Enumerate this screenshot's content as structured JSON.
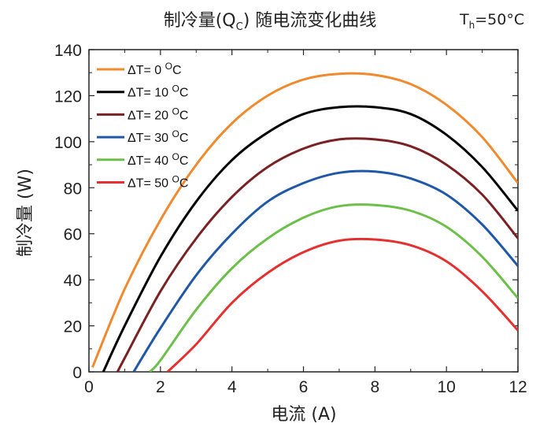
{
  "header": {
    "title_prefix": "制冷量(Q",
    "title_sub": "C",
    "title_suffix": ") 随电流变化曲线",
    "condition_main": "T",
    "condition_sub": "h",
    "condition_value": "=50°C"
  },
  "axes": {
    "ylabel": "制冷量 (W)",
    "xlabel": "电流 (A)"
  },
  "chart_data": {
    "type": "line",
    "title": "制冷量(QC) 随电流变化曲线",
    "xlabel": "电流 (A)",
    "ylabel": "制冷量 (W)",
    "xlim": [
      0,
      12
    ],
    "ylim": [
      0,
      140
    ],
    "xticks": [
      0,
      2,
      4,
      6,
      8,
      10,
      12
    ],
    "yticks": [
      0,
      20,
      40,
      60,
      80,
      100,
      120,
      140
    ],
    "grid": false,
    "legend_position": "top-left",
    "series": [
      {
        "name": "ΔT= 0 °C",
        "legend_text": "ΔT= 0 ",
        "color": "#F08A2E",
        "points": [
          [
            0.1,
            2
          ],
          [
            1,
            36
          ],
          [
            2,
            66
          ],
          [
            3,
            90
          ],
          [
            4,
            108
          ],
          [
            5,
            120
          ],
          [
            6,
            127
          ],
          [
            7,
            129.5
          ],
          [
            8,
            129
          ],
          [
            9,
            125
          ],
          [
            10,
            116
          ],
          [
            11,
            102
          ],
          [
            12,
            82
          ]
        ]
      },
      {
        "name": "ΔT= 10 °C",
        "legend_text": "ΔT= 10 ",
        "color": "#000000",
        "points": [
          [
            0.4,
            0
          ],
          [
            1,
            20
          ],
          [
            2,
            50
          ],
          [
            3,
            74
          ],
          [
            4,
            92
          ],
          [
            5,
            104
          ],
          [
            6,
            112
          ],
          [
            7,
            115
          ],
          [
            8,
            115
          ],
          [
            9,
            112
          ],
          [
            10,
            103
          ],
          [
            11,
            89
          ],
          [
            12,
            70
          ]
        ]
      },
      {
        "name": "ΔT= 20 °C",
        "legend_text": "ΔT= 20 ",
        "color": "#7A2124",
        "points": [
          [
            0.8,
            0
          ],
          [
            1,
            6
          ],
          [
            2,
            35
          ],
          [
            3,
            58
          ],
          [
            4,
            76
          ],
          [
            5,
            89
          ],
          [
            6,
            97
          ],
          [
            7,
            101
          ],
          [
            8,
            101
          ],
          [
            9,
            98
          ],
          [
            10,
            90
          ],
          [
            11,
            77
          ],
          [
            12,
            58
          ]
        ]
      },
      {
        "name": "ΔT= 30 °C",
        "legend_text": "ΔT= 30 ",
        "color": "#2058A8",
        "points": [
          [
            1.25,
            0
          ],
          [
            2,
            19
          ],
          [
            3,
            42
          ],
          [
            4,
            60
          ],
          [
            5,
            74
          ],
          [
            6,
            82
          ],
          [
            7,
            86.5
          ],
          [
            8,
            87
          ],
          [
            9,
            84
          ],
          [
            10,
            77
          ],
          [
            11,
            64
          ],
          [
            12,
            46
          ]
        ]
      },
      {
        "name": "ΔT= 40 °C",
        "legend_text": "ΔT= 40 ",
        "color": "#6CC04A",
        "points": [
          [
            1.7,
            0
          ],
          [
            2,
            5
          ],
          [
            3,
            27
          ],
          [
            4,
            45
          ],
          [
            5,
            58
          ],
          [
            6,
            67
          ],
          [
            7,
            72
          ],
          [
            8,
            72.5
          ],
          [
            9,
            70
          ],
          [
            10,
            63
          ],
          [
            11,
            50
          ],
          [
            12,
            32
          ]
        ]
      },
      {
        "name": "ΔT= 50 °C",
        "legend_text": "ΔT= 50 ",
        "color": "#E53030",
        "points": [
          [
            2.2,
            0
          ],
          [
            3,
            12
          ],
          [
            4,
            30
          ],
          [
            5,
            43
          ],
          [
            6,
            52
          ],
          [
            7,
            57
          ],
          [
            8,
            57.5
          ],
          [
            9,
            55
          ],
          [
            10,
            48
          ],
          [
            11,
            35
          ],
          [
            12,
            18
          ]
        ]
      }
    ]
  }
}
